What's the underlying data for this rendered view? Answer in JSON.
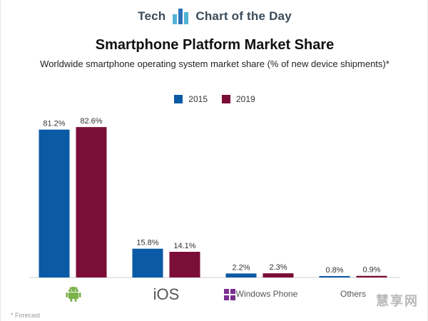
{
  "brand": {
    "left_text": "Tech",
    "right_text": "Chart of the Day",
    "logo_icon": "bar-chart-logo-icon",
    "logo_colors": [
      "#2b73b8",
      "#54b3d6"
    ]
  },
  "header": {
    "title": "Smartphone Platform Market Share",
    "subtitle": "Worldwide smartphone operating system market share (% of new device shipments)*"
  },
  "chart_data": {
    "type": "bar",
    "title": "Smartphone Platform Market Share",
    "subtitle": "Worldwide smartphone operating system market share (% of new device shipments)*",
    "categories": [
      "Android",
      "iOS",
      "Windows Phone",
      "Others"
    ],
    "category_display": [
      "",
      "iOS",
      "Windows Phone",
      "Others"
    ],
    "category_icons": [
      "android-icon",
      "",
      "windows-icon",
      ""
    ],
    "series": [
      {
        "name": "2015",
        "values": [
          81.2,
          15.8,
          2.2,
          0.8
        ],
        "labels": [
          "81.2%",
          "15.8%",
          "2.2%",
          "0.8%"
        ],
        "color": "#0b5aa5"
      },
      {
        "name": "2019",
        "values": [
          82.6,
          14.1,
          2.3,
          0.9
        ],
        "labels": [
          "82.6%",
          "14.1%",
          "2.3%",
          "0.9%"
        ],
        "color": "#7a0e36"
      }
    ],
    "xlabel": "",
    "ylabel": "",
    "ylim": [
      0,
      85
    ],
    "grid": false,
    "legend_position": "top-center"
  },
  "footnote": "* Forecast",
  "watermark": "慧享网",
  "colors": {
    "android_green": "#7bb24a",
    "windows_purple": "#7a2f8f",
    "axis": "#cfcfcf"
  }
}
